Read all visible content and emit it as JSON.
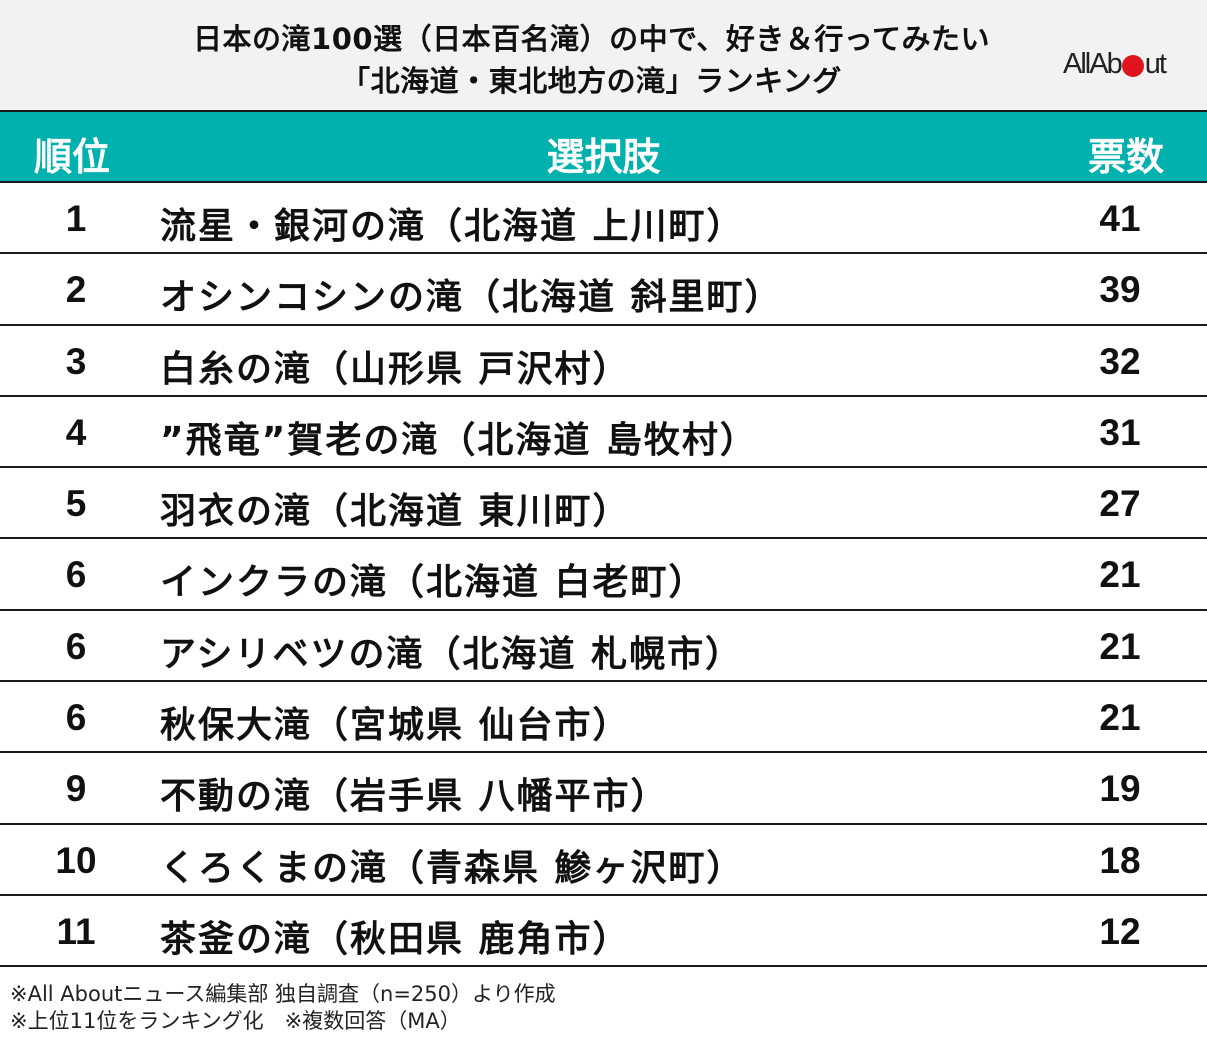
{
  "title": {
    "line1": "日本の滝100選（日本百名滝）の中で、好き＆行ってみたい",
    "line2": "「北海道・東北地方の滝」ランキング"
  },
  "logo": {
    "text_before": "AllAb",
    "text_after": "ut",
    "dot_color": "#e0141e"
  },
  "colors": {
    "header_bg": "#00b1ad",
    "title_bg": "#f2f2f2"
  },
  "table": {
    "headers": {
      "rank": "順位",
      "choice": "選択肢",
      "votes": "票数"
    },
    "rows": [
      {
        "rank": "1",
        "name": "流星・銀河の滝（北海道 上川町）",
        "votes": "41"
      },
      {
        "rank": "2",
        "name": "オシンコシンの滝（北海道 斜里町）",
        "votes": "39"
      },
      {
        "rank": "3",
        "name": "白糸の滝（山形県 戸沢村）",
        "votes": "32"
      },
      {
        "rank": "4",
        "name": "”飛竜”賀老の滝（北海道 島牧村）",
        "votes": "31"
      },
      {
        "rank": "5",
        "name": "羽衣の滝（北海道 東川町）",
        "votes": "27"
      },
      {
        "rank": "6",
        "name": "インクラの滝（北海道 白老町）",
        "votes": "21"
      },
      {
        "rank": "6",
        "name": "アシリベツの滝（北海道 札幌市）",
        "votes": "21"
      },
      {
        "rank": "6",
        "name": "秋保大滝（宮城県 仙台市）",
        "votes": "21"
      },
      {
        "rank": "9",
        "name": "不動の滝（岩手県 八幡平市）",
        "votes": "19"
      },
      {
        "rank": "10",
        "name": "くろくまの滝（青森県 鯵ヶ沢町）",
        "votes": "18"
      },
      {
        "rank": "11",
        "name": "茶釜の滝（秋田県 鹿角市）",
        "votes": "12"
      }
    ]
  },
  "notes": {
    "line1": "※All Aboutニュース編集部 独自調査（n=250）より作成",
    "line2": "※上位11位をランキング化　※複数回答（MA）"
  },
  "chart_data": {
    "type": "table",
    "title": "日本の滝100選（日本百名滝）の中で、好き＆行ってみたい「北海道・東北地方の滝」ランキング",
    "columns": [
      "順位",
      "選択肢",
      "票数"
    ],
    "categories": [
      "流星・銀河の滝（北海道 上川町）",
      "オシンコシンの滝（北海道 斜里町）",
      "白糸の滝（山形県 戸沢村）",
      "”飛竜”賀老の滝（北海道 島牧村）",
      "羽衣の滝（北海道 東川町）",
      "インクラの滝（北海道 白老町）",
      "アシリベツの滝（北海道 札幌市）",
      "秋保大滝（宮城県 仙台市）",
      "不動の滝（岩手県 八幡平市）",
      "くろくまの滝（青森県 鯵ヶ沢町）",
      "茶釜の滝（秋田県 鹿角市）"
    ],
    "ranks": [
      1,
      2,
      3,
      4,
      5,
      6,
      6,
      6,
      9,
      10,
      11
    ],
    "values": [
      41,
      39,
      32,
      31,
      27,
      21,
      21,
      21,
      19,
      18,
      12
    ],
    "xlabel": "",
    "ylabel": "票数",
    "annotations": [
      "※All Aboutニュース編集部 独自調査（n=250）より作成",
      "※上位11位をランキング化　※複数回答（MA）"
    ]
  }
}
